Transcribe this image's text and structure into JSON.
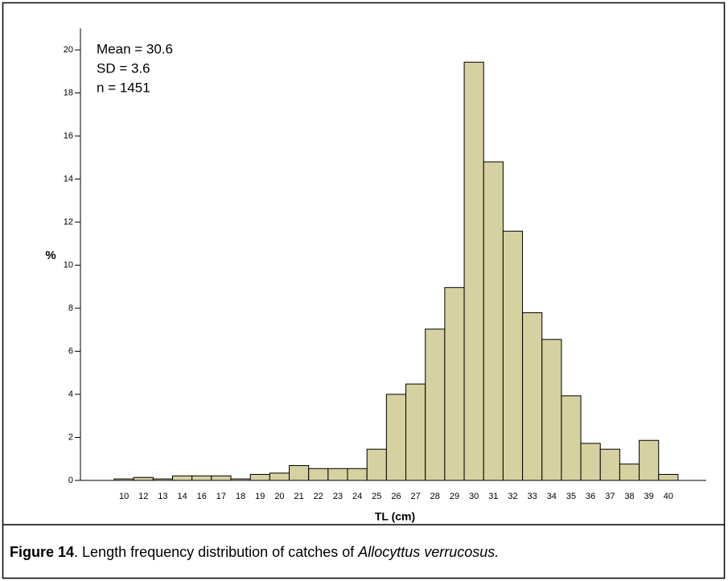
{
  "chart_data": {
    "type": "bar",
    "y_label": "%",
    "x_label": "TL (cm)",
    "annotations": [
      "Mean = 30.6",
      "SD = 3.6",
      "n = 1451"
    ],
    "categories": [
      "10",
      "12",
      "13",
      "14",
      "16",
      "17",
      "18",
      "19",
      "20",
      "21",
      "22",
      "23",
      "24",
      "25",
      "26",
      "27",
      "28",
      "29",
      "30",
      "31",
      "32",
      "33",
      "34",
      "35",
      "36",
      "37",
      "38",
      "39",
      "40"
    ],
    "values": [
      0.07,
      0.14,
      0.07,
      0.21,
      0.21,
      0.21,
      0.07,
      0.28,
      0.34,
      0.69,
      0.55,
      0.55,
      0.55,
      1.45,
      4.0,
      4.48,
      7.03,
      8.96,
      19.43,
      14.8,
      11.58,
      7.79,
      6.55,
      3.93,
      1.72,
      1.45,
      0.76,
      1.86,
      0.28
    ],
    "color": "#d6d1a0",
    "ylim": [
      0,
      21
    ],
    "yticks": [
      0,
      2,
      4,
      6,
      8,
      10,
      12,
      14,
      16,
      18,
      20
    ]
  },
  "caption": {
    "label": "Figure 14",
    "text": ". Length frequency distribution of catches of ",
    "species": "Allocyttus verrucosus."
  }
}
